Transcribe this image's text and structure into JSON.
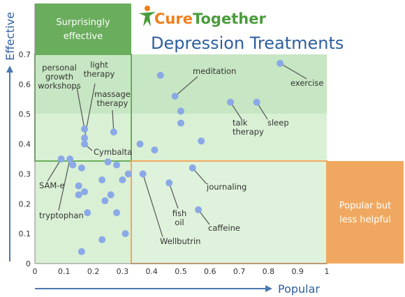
{
  "logo": {
    "part1": "Cure",
    "part2": "Together"
  },
  "chart_data": {
    "type": "scatter",
    "title": "Depression Treatments",
    "xlabel": "Popular",
    "ylabel": "Effective",
    "xlim": [
      0,
      1
    ],
    "ylim": [
      0,
      0.7
    ],
    "x_ticks": [
      "0",
      "0.1",
      "0.2",
      "0.3",
      "0.4",
      "0.5",
      "0.6",
      "0.7",
      "0.8",
      "0.9",
      "1"
    ],
    "y_ticks": [
      "0",
      "0.1",
      "0.2",
      "0.3",
      "0.4",
      "0.5",
      "0.6",
      "0.7"
    ],
    "regions": {
      "surprisingly_effective": "Surprisingly effective",
      "popular_less_helpful": "Popular but less helpful"
    },
    "points": [
      {
        "x": 0.84,
        "y": 0.67,
        "label": "exercise"
      },
      {
        "x": 0.43,
        "y": 0.63
      },
      {
        "x": 0.48,
        "y": 0.56,
        "label": "meditation"
      },
      {
        "x": 0.67,
        "y": 0.54,
        "label": "talk therapy"
      },
      {
        "x": 0.76,
        "y": 0.54,
        "label": "sleep"
      },
      {
        "x": 0.5,
        "y": 0.51
      },
      {
        "x": 0.5,
        "y": 0.47
      },
      {
        "x": 0.17,
        "y": 0.45,
        "label": "personal growth workshops"
      },
      {
        "x": 0.17,
        "y": 0.42,
        "label": "light therapy"
      },
      {
        "x": 0.27,
        "y": 0.44,
        "label": "massage therapy"
      },
      {
        "x": 0.17,
        "y": 0.4,
        "label": "Cymbalta"
      },
      {
        "x": 0.36,
        "y": 0.4
      },
      {
        "x": 0.41,
        "y": 0.38
      },
      {
        "x": 0.57,
        "y": 0.41
      },
      {
        "x": 0.09,
        "y": 0.35,
        "label": "SAM-e"
      },
      {
        "x": 0.12,
        "y": 0.35,
        "label": "tryptophan"
      },
      {
        "x": 0.13,
        "y": 0.33
      },
      {
        "x": 0.16,
        "y": 0.32
      },
      {
        "x": 0.25,
        "y": 0.34
      },
      {
        "x": 0.28,
        "y": 0.33
      },
      {
        "x": 0.32,
        "y": 0.3
      },
      {
        "x": 0.37,
        "y": 0.3,
        "label": "Wellbutrin"
      },
      {
        "x": 0.54,
        "y": 0.32,
        "label": "journaling"
      },
      {
        "x": 0.23,
        "y": 0.28
      },
      {
        "x": 0.3,
        "y": 0.28
      },
      {
        "x": 0.15,
        "y": 0.26
      },
      {
        "x": 0.15,
        "y": 0.23
      },
      {
        "x": 0.17,
        "y": 0.24
      },
      {
        "x": 0.26,
        "y": 0.23
      },
      {
        "x": 0.24,
        "y": 0.21
      },
      {
        "x": 0.46,
        "y": 0.27,
        "label": "fish oil"
      },
      {
        "x": 0.18,
        "y": 0.17
      },
      {
        "x": 0.28,
        "y": 0.17
      },
      {
        "x": 0.56,
        "y": 0.18,
        "label": "caffeine"
      },
      {
        "x": 0.31,
        "y": 0.1
      },
      {
        "x": 0.23,
        "y": 0.08
      },
      {
        "x": 0.16,
        "y": 0.04
      }
    ]
  },
  "colors": {
    "region_top": "#c7e6c3",
    "region_light": "#d9f0d5",
    "green_box": "#6aad5d",
    "orange": "#f0a860",
    "point": "#8aa9e6",
    "axis": "#4a78b0",
    "title": "#2e5f9e"
  }
}
